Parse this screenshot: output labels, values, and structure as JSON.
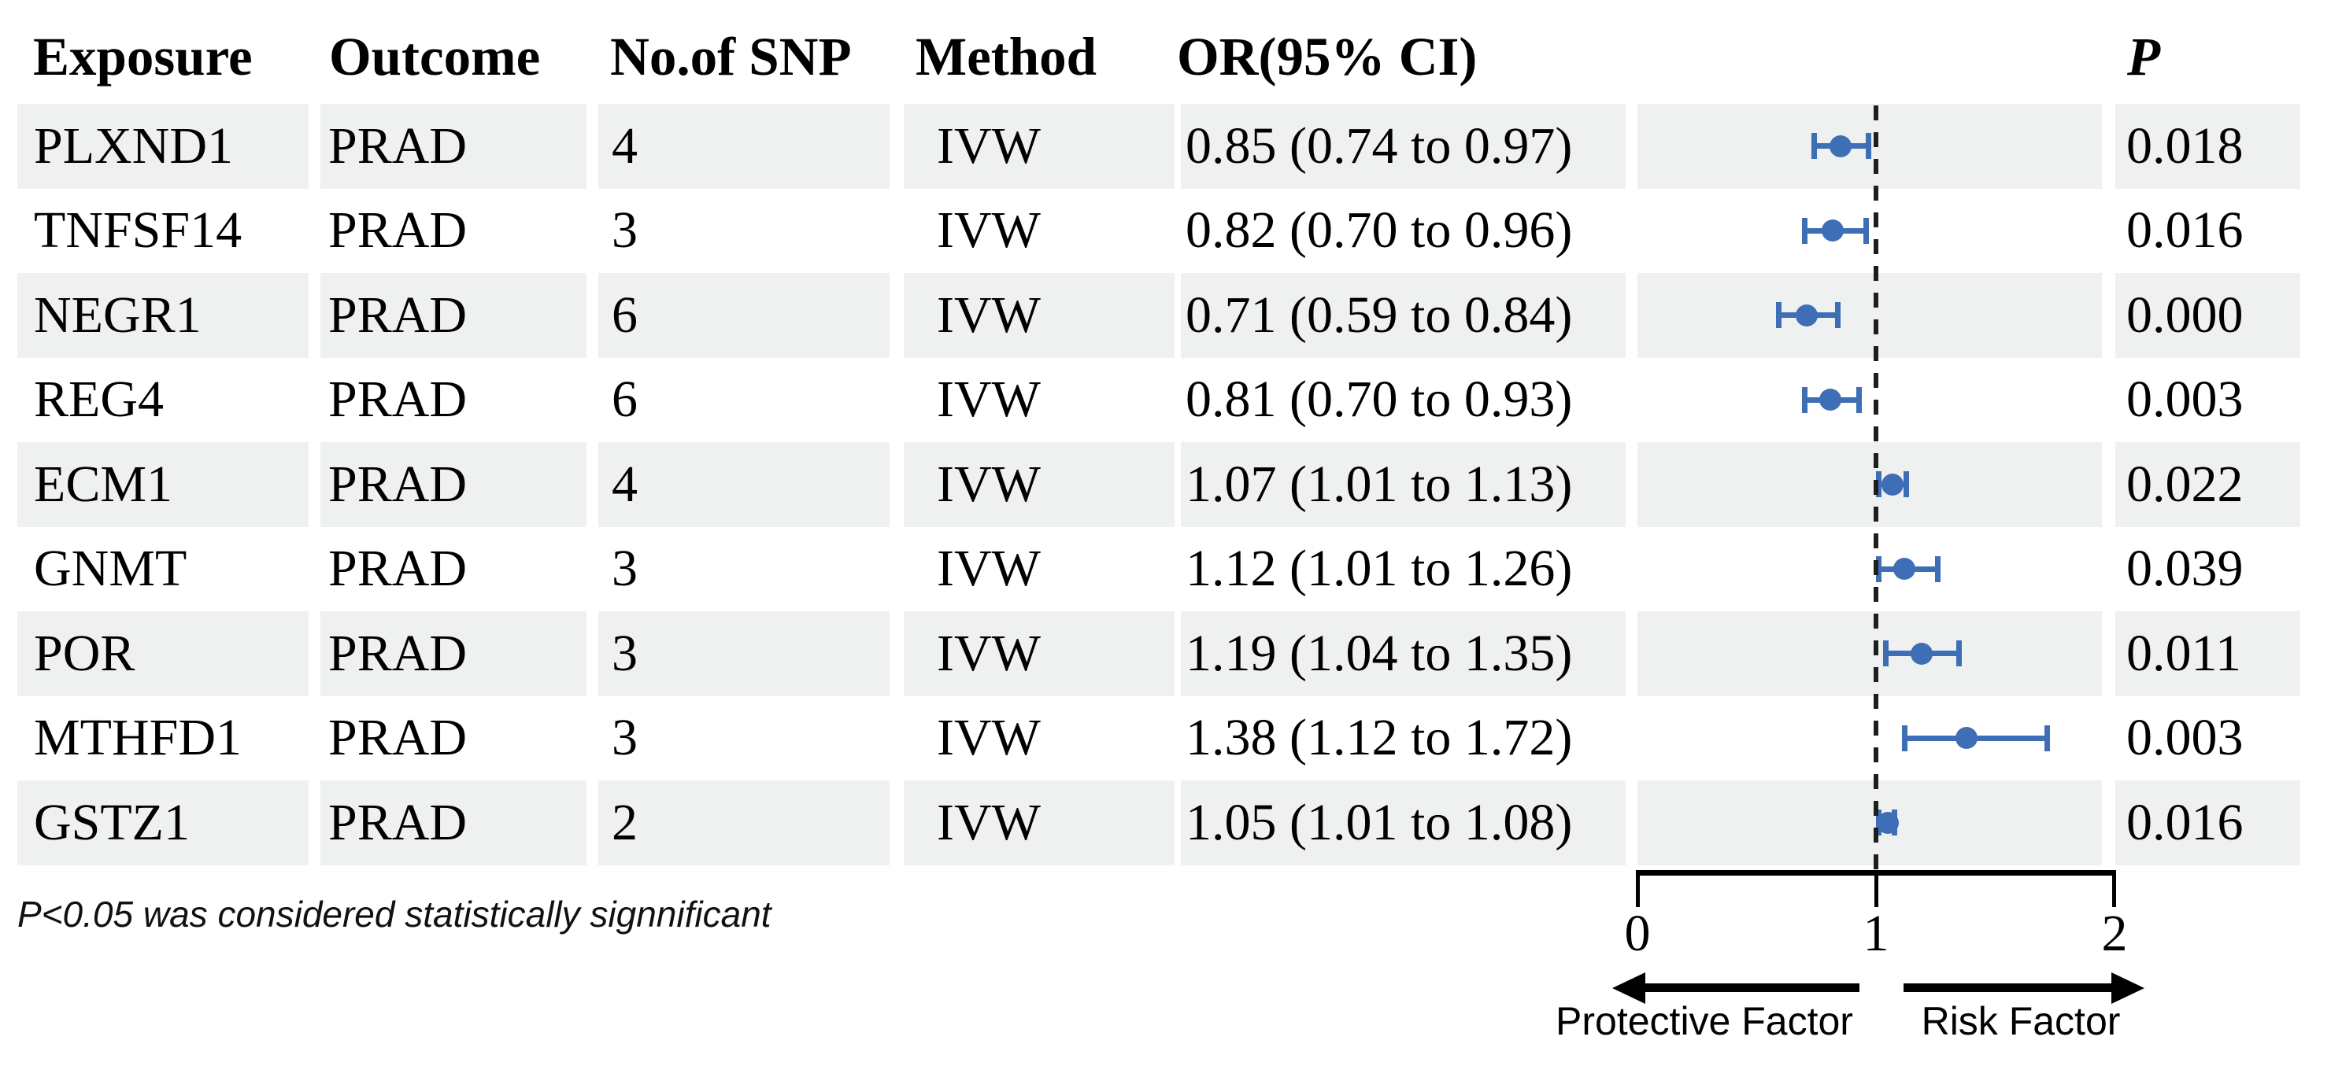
{
  "table": {
    "headers": {
      "exposure": "Exposure",
      "outcome": "Outcome",
      "snp": "No.of SNP",
      "method": "Method",
      "or_ci": "OR(95% CI)",
      "p": "P"
    },
    "rows": [
      {
        "exposure": "PLXND1",
        "outcome": "PRAD",
        "snp": "4",
        "method": "IVW",
        "or_ci": "0.85 (0.74 to 0.97)",
        "p": "0.018"
      },
      {
        "exposure": "TNFSF14",
        "outcome": "PRAD",
        "snp": "3",
        "method": "IVW",
        "or_ci": "0.82 (0.70 to 0.96)",
        "p": "0.016"
      },
      {
        "exposure": "NEGR1",
        "outcome": "PRAD",
        "snp": "6",
        "method": "IVW",
        "or_ci": "0.71 (0.59 to 0.84)",
        "p": "0.000"
      },
      {
        "exposure": "REG4",
        "outcome": "PRAD",
        "snp": "6",
        "method": "IVW",
        "or_ci": "0.81 (0.70 to 0.93)",
        "p": "0.003"
      },
      {
        "exposure": "ECM1",
        "outcome": "PRAD",
        "snp": "4",
        "method": "IVW",
        "or_ci": "1.07 (1.01 to 1.13)",
        "p": "0.022"
      },
      {
        "exposure": "GNMT",
        "outcome": "PRAD",
        "snp": "3",
        "method": "IVW",
        "or_ci": "1.12 (1.01 to 1.26)",
        "p": "0.039"
      },
      {
        "exposure": "POR",
        "outcome": "PRAD",
        "snp": "3",
        "method": "IVW",
        "or_ci": "1.19 (1.04 to 1.35)",
        "p": "0.011"
      },
      {
        "exposure": "MTHFD1",
        "outcome": "PRAD",
        "snp": "3",
        "method": "IVW",
        "or_ci": "1.38 (1.12 to 1.72)",
        "p": "0.003"
      },
      {
        "exposure": "GSTZ1",
        "outcome": "PRAD",
        "snp": "2",
        "method": "IVW",
        "or_ci": "1.05 (1.01 to 1.08)",
        "p": "0.016"
      }
    ]
  },
  "footnote": "P<0.05 was considered statistically signnificant",
  "axis": {
    "ticks": [
      "0",
      "1",
      "2"
    ],
    "left_label": "Protective Factor",
    "right_label": "Risk Factor"
  },
  "colors": {
    "row_band": "#eef1f0",
    "marker_blue": "#3e6eb5",
    "reference_dash": "#1e1e1e"
  },
  "chart_data": {
    "type": "forest",
    "title": "",
    "x_range": [
      0,
      2
    ],
    "x_ticks": [
      0,
      1,
      2
    ],
    "reference_line": 1,
    "legend": "none",
    "grid": "off",
    "marker_color": "#3e6eb5",
    "direction_labels": {
      "left_of_1": "Protective Factor",
      "right_of_1": "Risk Factor"
    },
    "rows": [
      {
        "exposure": "PLXND1",
        "outcome": "PRAD",
        "n_snp": 4,
        "method": "IVW",
        "or": 0.85,
        "ci_low": 0.74,
        "ci_high": 0.97,
        "p": 0.018
      },
      {
        "exposure": "TNFSF14",
        "outcome": "PRAD",
        "n_snp": 3,
        "method": "IVW",
        "or": 0.82,
        "ci_low": 0.7,
        "ci_high": 0.96,
        "p": 0.016
      },
      {
        "exposure": "NEGR1",
        "outcome": "PRAD",
        "n_snp": 6,
        "method": "IVW",
        "or": 0.71,
        "ci_low": 0.59,
        "ci_high": 0.84,
        "p": 0.0
      },
      {
        "exposure": "REG4",
        "outcome": "PRAD",
        "n_snp": 6,
        "method": "IVW",
        "or": 0.81,
        "ci_low": 0.7,
        "ci_high": 0.93,
        "p": 0.003
      },
      {
        "exposure": "ECM1",
        "outcome": "PRAD",
        "n_snp": 4,
        "method": "IVW",
        "or": 1.07,
        "ci_low": 1.01,
        "ci_high": 1.13,
        "p": 0.022
      },
      {
        "exposure": "GNMT",
        "outcome": "PRAD",
        "n_snp": 3,
        "method": "IVW",
        "or": 1.12,
        "ci_low": 1.01,
        "ci_high": 1.26,
        "p": 0.039
      },
      {
        "exposure": "POR",
        "outcome": "PRAD",
        "n_snp": 3,
        "method": "IVW",
        "or": 1.19,
        "ci_low": 1.04,
        "ci_high": 1.35,
        "p": 0.011
      },
      {
        "exposure": "MTHFD1",
        "outcome": "PRAD",
        "n_snp": 3,
        "method": "IVW",
        "or": 1.38,
        "ci_low": 1.12,
        "ci_high": 1.72,
        "p": 0.003
      },
      {
        "exposure": "GSTZ1",
        "outcome": "PRAD",
        "n_snp": 2,
        "method": "IVW",
        "or": 1.05,
        "ci_low": 1.01,
        "ci_high": 1.08,
        "p": 0.016
      }
    ]
  }
}
